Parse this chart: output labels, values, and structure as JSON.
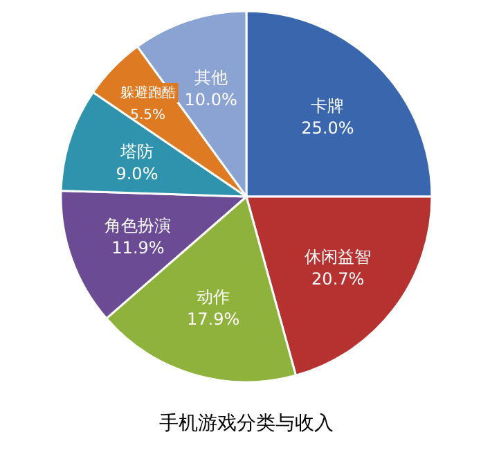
{
  "chart_data": {
    "type": "pie",
    "title": "手机游戏分类与收入",
    "categories": [
      "卡牌",
      "休闲益智",
      "动作",
      "角色扮演",
      "塔防",
      "躲避跑酷",
      "其他"
    ],
    "values": [
      25.0,
      20.7,
      17.9,
      11.9,
      9.0,
      5.5,
      10.0
    ],
    "value_labels": [
      "25.0%",
      "20.7%",
      "17.9%",
      "11.9%",
      "9.0%",
      "5.5%",
      "10.0%"
    ],
    "colors": [
      "#3a66ae",
      "#b53230",
      "#8fb23c",
      "#6a4b94",
      "#2f93ad",
      "#de7a22",
      "#8aa3d2"
    ]
  }
}
